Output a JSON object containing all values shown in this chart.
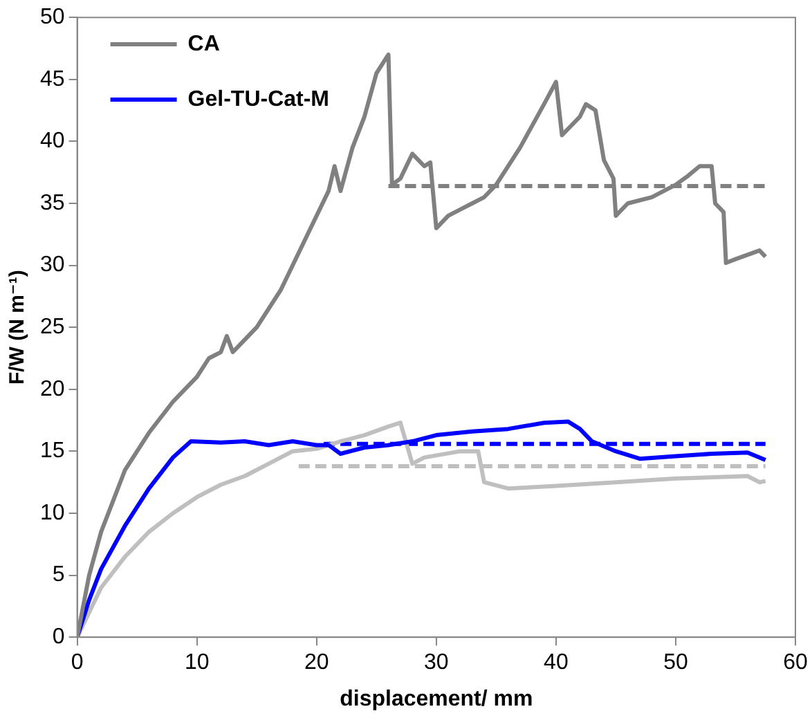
{
  "chart_data": {
    "type": "line",
    "xlabel": "displacement/ mm",
    "ylabel": "F/W (N m⁻¹)",
    "xlim": [
      0,
      60
    ],
    "xticks": [
      0,
      10,
      20,
      30,
      40,
      50,
      60
    ],
    "ylim": [
      0,
      50
    ],
    "yticks": [
      0,
      5,
      10,
      15,
      20,
      25,
      30,
      35,
      40,
      45,
      50
    ],
    "grid": false,
    "legend": "top left",
    "marker": "none",
    "series": [
      {
        "name": "CA",
        "color": "#808080",
        "x": [
          0,
          1,
          2,
          3,
          4,
          6,
          8,
          10,
          11,
          12,
          12.5,
          13,
          15,
          17,
          19,
          21,
          21.5,
          22,
          23,
          24,
          25,
          26,
          26.3,
          27,
          28,
          29,
          29.5,
          30,
          31,
          32,
          33,
          34,
          35,
          37,
          39,
          40,
          40.5,
          41,
          42,
          42.5,
          43.3,
          44,
          44.8,
          45,
          46,
          48,
          50,
          51,
          52,
          53,
          53.3,
          54,
          54.2,
          55,
          57,
          57.5
        ],
        "values": [
          0,
          5,
          8.5,
          11,
          13.5,
          16.5,
          19,
          21,
          22.5,
          23,
          24.3,
          23,
          25,
          28,
          32,
          36,
          38,
          36,
          39.5,
          42,
          45.5,
          47,
          36.5,
          37,
          39,
          38,
          38.3,
          33,
          34,
          34.5,
          35,
          35.5,
          36.5,
          39.5,
          43,
          44.8,
          40.5,
          41,
          42,
          43,
          42.5,
          38.5,
          37,
          34,
          35,
          35.5,
          36.5,
          37.2,
          38,
          38,
          35,
          34.3,
          30.2,
          30.5,
          31.2,
          30.7
        ]
      },
      {
        "name": "Gel-TU-Cat-M",
        "color": "#0000ff",
        "x": [
          0,
          1,
          2,
          4,
          6,
          8,
          9.5,
          12,
          14,
          16,
          18,
          20,
          21,
          22,
          24,
          26,
          28,
          30,
          33,
          36,
          39,
          41,
          42,
          43,
          45,
          47,
          50,
          53,
          56,
          57.5
        ],
        "values": [
          0,
          3,
          5.5,
          9,
          12,
          14.5,
          15.8,
          15.7,
          15.8,
          15.5,
          15.8,
          15.5,
          15.5,
          14.8,
          15.3,
          15.5,
          15.8,
          16.3,
          16.6,
          16.8,
          17.3,
          17.4,
          16.8,
          15.8,
          15,
          14.4,
          14.6,
          14.8,
          14.9,
          14.3
        ]
      },
      {
        "color": "#bfbfbf",
        "x": [
          0,
          2,
          4,
          6,
          8,
          10,
          12,
          14,
          16,
          18,
          20,
          22,
          24,
          26,
          27,
          28,
          29,
          32,
          33.5,
          34,
          36,
          40,
          45,
          50,
          56,
          57,
          57.5
        ],
        "values": [
          0,
          4,
          6.5,
          8.5,
          10,
          11.3,
          12.3,
          13,
          14,
          15,
          15.2,
          15.8,
          16.3,
          17,
          17.3,
          14,
          14.5,
          15,
          15,
          12.5,
          12,
          12.2,
          12.5,
          12.8,
          13,
          12.5,
          12.6
        ]
      },
      {
        "color": "#808080",
        "line_style": "dashed",
        "x": [
          26,
          57.5
        ],
        "values": [
          36.4,
          36.4
        ]
      },
      {
        "color": "#0000ff",
        "line_style": "dashed",
        "x": [
          20.6,
          57.5
        ],
        "values": [
          15.6,
          15.6
        ]
      },
      {
        "color": "#bfbfbf",
        "line_style": "dashed",
        "x": [
          18.5,
          57.5
        ],
        "values": [
          13.8,
          13.8
        ]
      }
    ]
  }
}
